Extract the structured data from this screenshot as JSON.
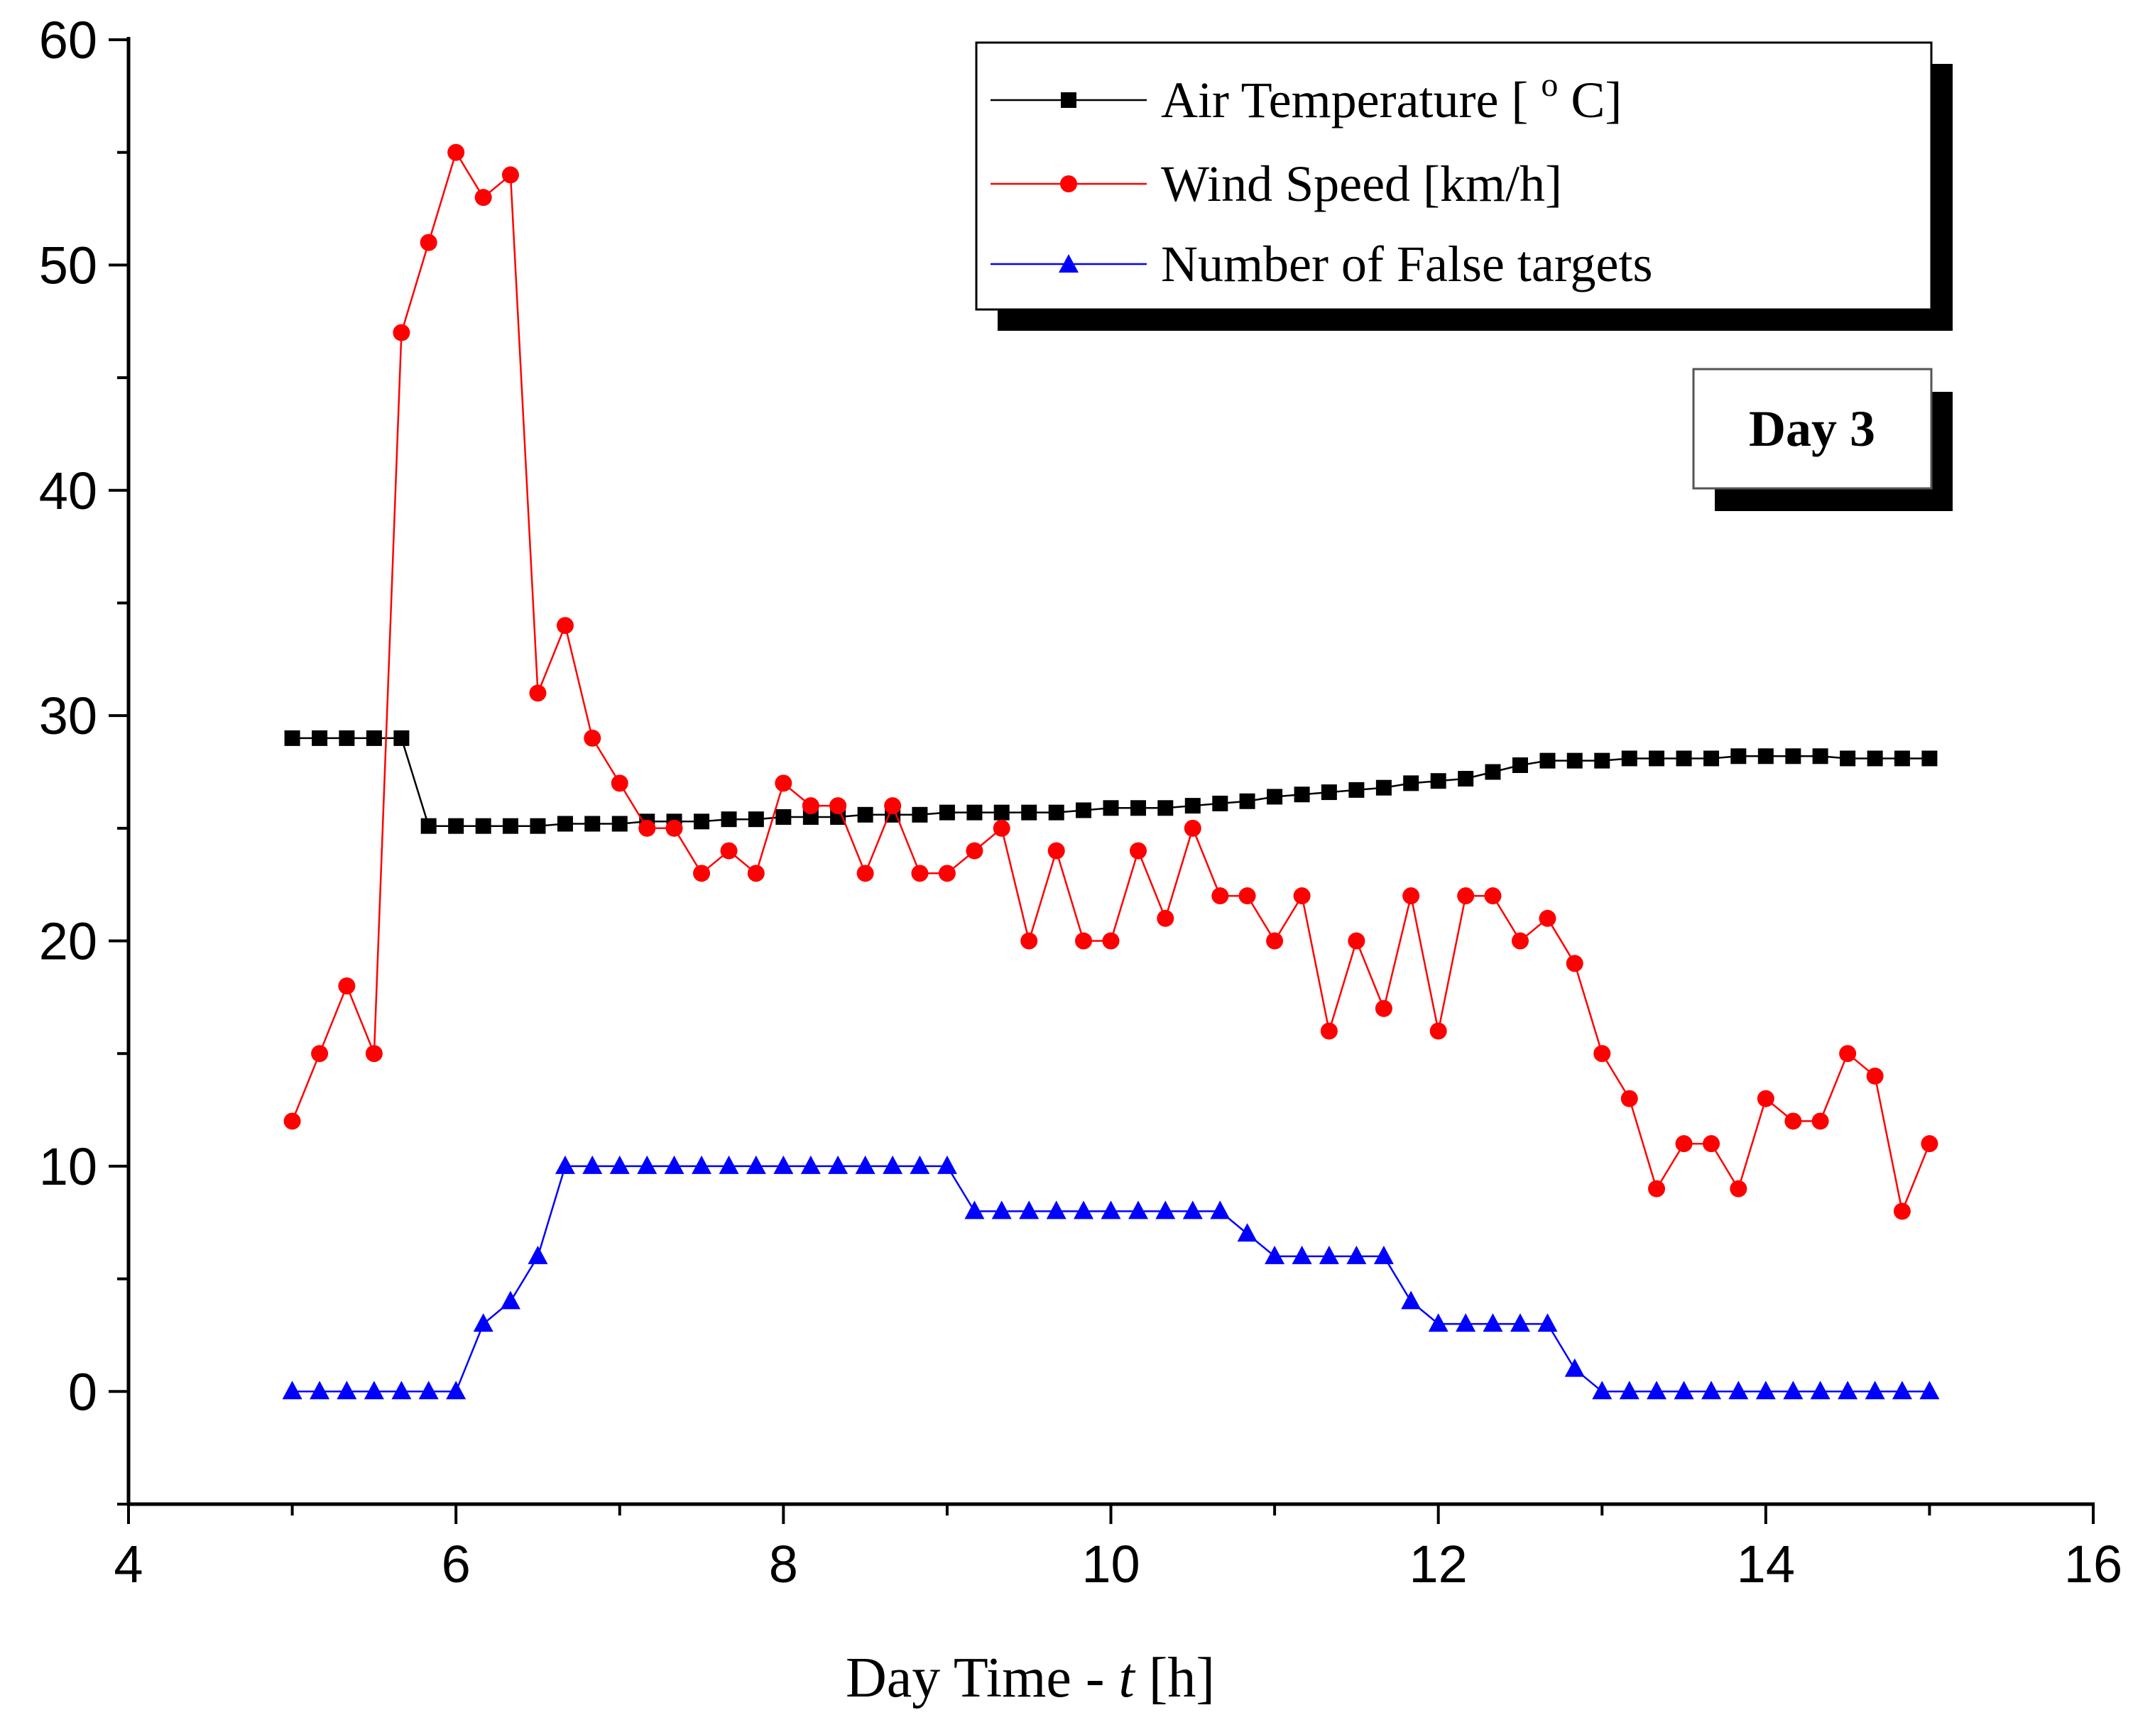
{
  "chart_data": {
    "type": "line",
    "title": "",
    "xlabel_prefix": "Day Time - ",
    "xlabel_var": "t",
    "xlabel_unit": " [h]",
    "ylabel": "",
    "xlim": [
      4,
      16
    ],
    "ylim": [
      -5,
      60
    ],
    "xticks": [
      4,
      6,
      8,
      10,
      12,
      14,
      16
    ],
    "yticks": [
      0,
      10,
      20,
      30,
      40,
      50,
      60
    ],
    "annotation": "Day 3",
    "legend_position": "top-right",
    "colors": {
      "temperature": "#000000",
      "wind": "#ff0000",
      "targets": "#0000ff",
      "axis": "#000000"
    },
    "series": [
      {
        "name": "Air Temperature [ ° C]",
        "legend_main": "Air Temperature [ ",
        "legend_sup": "o",
        "legend_end": " C]",
        "marker": "square",
        "x": [
          5.0,
          5.167,
          5.333,
          5.5,
          5.667,
          5.833,
          6.0,
          6.167,
          6.333,
          6.5,
          6.667,
          6.833,
          7.0,
          7.167,
          7.333,
          7.5,
          7.667,
          7.833,
          8.0,
          8.167,
          8.333,
          8.5,
          8.667,
          8.833,
          9.0,
          9.167,
          9.333,
          9.5,
          9.667,
          9.833,
          10.0,
          10.167,
          10.333,
          10.5,
          10.667,
          10.833,
          11.0,
          11.167,
          11.333,
          11.5,
          11.667,
          11.833,
          12.0,
          12.167,
          12.333,
          12.5,
          12.667,
          12.833,
          13.0,
          13.167,
          13.333,
          13.5,
          13.667,
          13.833,
          14.0,
          14.167,
          14.333,
          14.5,
          14.667,
          14.833,
          15.0
        ],
        "values": [
          29,
          29,
          29,
          29,
          29,
          25.1,
          25.1,
          25.1,
          25.1,
          25.1,
          25.2,
          25.2,
          25.2,
          25.3,
          25.3,
          25.3,
          25.4,
          25.4,
          25.5,
          25.5,
          25.5,
          25.6,
          25.6,
          25.6,
          25.7,
          25.7,
          25.7,
          25.7,
          25.7,
          25.8,
          25.9,
          25.9,
          25.9,
          26.0,
          26.1,
          26.2,
          26.4,
          26.5,
          26.6,
          26.7,
          26.8,
          27.0,
          27.1,
          27.2,
          27.5,
          27.8,
          28.0,
          28.0,
          28.0,
          28.1,
          28.1,
          28.1,
          28.1,
          28.2,
          28.2,
          28.2,
          28.2,
          28.1,
          28.1,
          28.1,
          28.1
        ]
      },
      {
        "name": "Wind Speed [km/h]",
        "legend_main": "Wind Speed [km/h]",
        "legend_sup": "",
        "legend_end": "",
        "marker": "circle",
        "x": [
          5.0,
          5.167,
          5.333,
          5.5,
          5.667,
          5.833,
          6.0,
          6.167,
          6.333,
          6.5,
          6.667,
          6.833,
          7.0,
          7.167,
          7.333,
          7.5,
          7.667,
          7.833,
          8.0,
          8.167,
          8.333,
          8.5,
          8.667,
          8.833,
          9.0,
          9.167,
          9.333,
          9.5,
          9.667,
          9.833,
          10.0,
          10.167,
          10.333,
          10.5,
          10.667,
          10.833,
          11.0,
          11.167,
          11.333,
          11.5,
          11.667,
          11.833,
          12.0,
          12.167,
          12.333,
          12.5,
          12.667,
          12.833,
          13.0,
          13.167,
          13.333,
          13.5,
          13.667,
          13.833,
          14.0,
          14.167,
          14.333,
          14.5,
          14.667,
          14.833,
          15.0
        ],
        "values": [
          12,
          15,
          18,
          15,
          47,
          51,
          55,
          53,
          54,
          31,
          34,
          29,
          27,
          25,
          25,
          23,
          24,
          23,
          27,
          26,
          26,
          23,
          26,
          23,
          23,
          24,
          25,
          20,
          24,
          20,
          20,
          24,
          21,
          25,
          22,
          22,
          20,
          22,
          16,
          20,
          17,
          22,
          16,
          22,
          22,
          20,
          21,
          19,
          15,
          13,
          9,
          11,
          11,
          9,
          13,
          12,
          12,
          15,
          14,
          8,
          11
        ]
      },
      {
        "name": "Number of False targets",
        "legend_main": "Number of False targets",
        "legend_sup": "",
        "legend_end": "",
        "marker": "triangle",
        "x": [
          5.0,
          5.167,
          5.333,
          5.5,
          5.667,
          5.833,
          6.0,
          6.167,
          6.333,
          6.5,
          6.667,
          6.833,
          7.0,
          7.167,
          7.333,
          7.5,
          7.667,
          7.833,
          8.0,
          8.167,
          8.333,
          8.5,
          8.667,
          8.833,
          9.0,
          9.167,
          9.333,
          9.5,
          9.667,
          9.833,
          10.0,
          10.167,
          10.333,
          10.5,
          10.667,
          10.833,
          11.0,
          11.167,
          11.333,
          11.5,
          11.667,
          11.833,
          12.0,
          12.167,
          12.333,
          12.5,
          12.667,
          12.833,
          13.0,
          13.167,
          13.333,
          13.5,
          13.667,
          13.833,
          14.0,
          14.167,
          14.333,
          14.5,
          14.667,
          14.833,
          15.0
        ],
        "values": [
          0,
          0,
          0,
          0,
          0,
          0,
          0,
          3,
          4,
          6,
          10,
          10,
          10,
          10,
          10,
          10,
          10,
          10,
          10,
          10,
          10,
          10,
          10,
          10,
          10,
          8,
          8,
          8,
          8,
          8,
          8,
          8,
          8,
          8,
          8,
          7,
          6,
          6,
          6,
          6,
          6,
          4,
          3,
          3,
          3,
          3,
          3,
          1,
          0,
          0,
          0,
          0,
          0,
          0,
          0,
          0,
          0,
          0,
          0,
          0,
          0
        ]
      }
    ]
  }
}
